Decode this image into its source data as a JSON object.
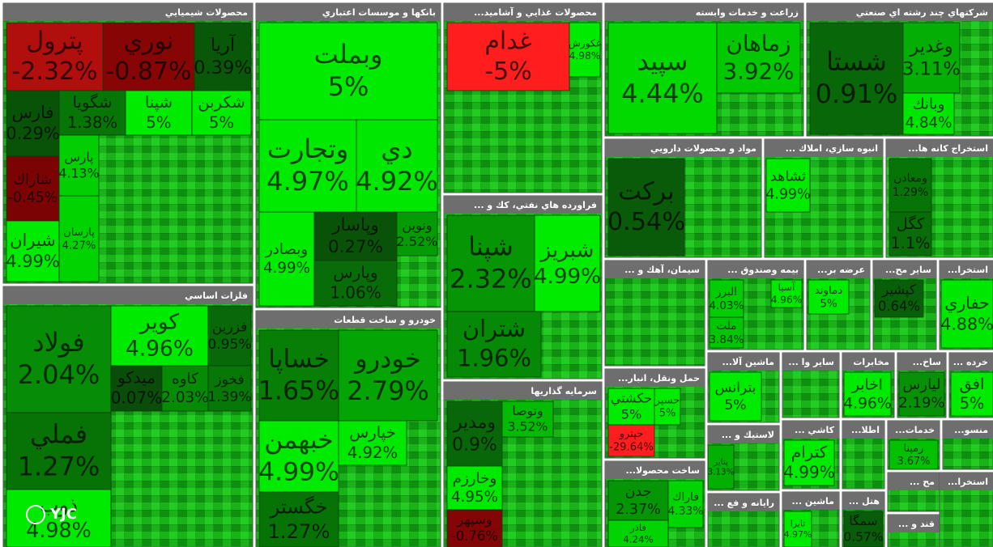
{
  "watermark": "YJC",
  "sectors": [
    {
      "title": "محصولات شيميايي",
      "tiles": [
        {
          "name": "پترول",
          "change": "-2.32%"
        },
        {
          "name": "نوري",
          "change": "-0.87%"
        },
        {
          "name": "آريا",
          "change": "0.39%"
        },
        {
          "name": "فارس",
          "change": "0.29%"
        },
        {
          "name": "شگويا",
          "change": "1.38%"
        },
        {
          "name": "شپنا",
          "change": "5%"
        },
        {
          "name": "شكربن",
          "change": "5%"
        },
        {
          "name": "شاراك",
          "change": "-0.45%"
        },
        {
          "name": "شيران",
          "change": "4.99%"
        },
        {
          "name": "پارس",
          "change": "4.13%"
        },
        {
          "name": "پارسان",
          "change": "4.27%"
        }
      ]
    },
    {
      "title": "فلزات اساسي",
      "tiles": [
        {
          "name": "فولاد",
          "change": "2.04%"
        },
        {
          "name": "كوير",
          "change": "4.96%"
        },
        {
          "name": "فزرين",
          "change": "0.95%"
        },
        {
          "name": "ميدكو",
          "change": "0.07%"
        },
        {
          "name": "كاوه",
          "change": "2.03%"
        },
        {
          "name": "فخوز",
          "change": "1.39%"
        },
        {
          "name": "فملي",
          "change": "1.27%"
        },
        {
          "name": "ذوب",
          "change": "4.98%"
        }
      ]
    },
    {
      "title": "بانكها و موسسات اعتباري",
      "tiles": [
        {
          "name": "وبملت",
          "change": "5%"
        },
        {
          "name": "وتجارت",
          "change": "4.97%"
        },
        {
          "name": "دي",
          "change": "4.92%"
        },
        {
          "name": "وبصادر",
          "change": "4.99%"
        },
        {
          "name": "وپاسار",
          "change": "0.27%"
        },
        {
          "name": "ونوين",
          "change": "2.52%"
        },
        {
          "name": "وپارس",
          "change": "1.06%"
        }
      ]
    },
    {
      "title": "خودرو و ساخت قطعات",
      "tiles": [
        {
          "name": "خساپا",
          "change": "1.65%"
        },
        {
          "name": "خودرو",
          "change": "2.79%"
        },
        {
          "name": "خبهمن",
          "change": "4.99%"
        },
        {
          "name": "خپارس",
          "change": "4.92%"
        },
        {
          "name": "خگستر",
          "change": "1.27%"
        }
      ]
    },
    {
      "title": "...محصولات غذايي و آشاميد",
      "tiles": [
        {
          "name": "غدام",
          "change": "-5%"
        },
        {
          "name": "غكورش",
          "change": "4.98%"
        }
      ]
    },
    {
      "title": "... فراورده هاي نفتي، كك و",
      "tiles": [
        {
          "name": "شپنا",
          "change": "2.32%"
        },
        {
          "name": "شبريز",
          "change": "4.99%"
        },
        {
          "name": "شتران",
          "change": "1.96%"
        }
      ]
    },
    {
      "title": "سرمايه گذاريها",
      "tiles": [
        {
          "name": "ومدير",
          "change": "0.9%"
        },
        {
          "name": "وتوصا",
          "change": "3.52%"
        },
        {
          "name": "وخارزم",
          "change": "4.95%"
        },
        {
          "name": "وسپهر",
          "change": "-0.76%"
        }
      ]
    },
    {
      "title": "زراعت و خدمات وابسته",
      "tiles": [
        {
          "name": "سپيد",
          "change": "4.44%"
        },
        {
          "name": "زماهان",
          "change": "3.92%"
        }
      ]
    },
    {
      "title": "شركتهاي چند رشته اي صنعتي",
      "tiles": [
        {
          "name": "شستا",
          "change": "0.91%"
        },
        {
          "name": "وغدير",
          "change": "3.11%"
        },
        {
          "name": "وبانك",
          "change": "4.84%"
        }
      ]
    },
    {
      "title": "مواد و محصولات دارويي",
      "tiles": [
        {
          "name": "بركت",
          "change": "0.54%"
        }
      ]
    },
    {
      "title": "... انبوه سازي، املاك",
      "tiles": [
        {
          "name": "ثشاهد",
          "change": "4.99%"
        }
      ]
    },
    {
      "title": "...استخراج كانه ها",
      "tiles": [
        {
          "name": "ومعادن",
          "change": "1.29%"
        },
        {
          "name": "كگل",
          "change": "1.1%"
        }
      ]
    },
    {
      "title": "... سيمان، آهك و",
      "tiles": []
    },
    {
      "title": "... بيمه وصندوق",
      "tiles": [
        {
          "name": "البرز",
          "change": "4.03%"
        },
        {
          "name": "ملت",
          "change": "3.84%"
        },
        {
          "name": "آسيا",
          "change": "4.96%"
        }
      ]
    },
    {
      "title": "...عرضه بر",
      "tiles": [
        {
          "name": "دماوند",
          "change": "5%"
        }
      ]
    },
    {
      "title": "...ساير مح",
      "tiles": [
        {
          "name": "كپشير",
          "change": "0.64%"
        }
      ]
    },
    {
      "title": "...استخرا",
      "tiles": [
        {
          "name": "حفاري",
          "change": "4.88%"
        }
      ]
    },
    {
      "title": "...حمل ونقل، انبار",
      "tiles": [
        {
          "name": "حكشتي",
          "change": "5%"
        },
        {
          "name": "حپترو",
          "change": "-29.64%"
        },
        {
          "name": "حسير",
          "change": "5%"
        }
      ]
    },
    {
      "title": "...ساخت محصولا",
      "tiles": [
        {
          "name": "جدن",
          "change": "2.37%"
        },
        {
          "name": "فاراك",
          "change": "4.33%"
        },
        {
          "name": "فاذر",
          "change": "4.24%"
        }
      ]
    },
    {
      "title": "...ماشين آلا",
      "tiles": [
        {
          "name": "بترانس",
          "change": "5%"
        }
      ]
    },
    {
      "title": "... ساير وا",
      "tiles": []
    },
    {
      "title": "مخابرات",
      "tiles": [
        {
          "name": "اخابر",
          "change": "4.96%"
        }
      ]
    },
    {
      "title": "...ساخ",
      "tiles": [
        {
          "name": "ليارس",
          "change": "2.19%"
        }
      ]
    },
    {
      "title": "... خرده",
      "tiles": [
        {
          "name": "افق",
          "change": "5%"
        }
      ]
    },
    {
      "title": "... لاستيك و",
      "tiles": [
        {
          "name": "پتاير",
          "change": "3.13%"
        }
      ]
    },
    {
      "title": "... كاشي",
      "tiles": [
        {
          "name": "كترام",
          "change": "4.99%"
        }
      ]
    },
    {
      "title": "...اطلا",
      "tiles": []
    },
    {
      "title": "...خدمات",
      "tiles": [
        {
          "name": "رمپنا",
          "change": "3.67%"
        }
      ]
    },
    {
      "title": "...منسو",
      "tiles": []
    },
    {
      "title": "... رايانه و فع",
      "tiles": []
    },
    {
      "title": "... ماشين",
      "tiles": [
        {
          "name": "تايرا",
          "change": "4.97%"
        }
      ]
    },
    {
      "title": "... هتل",
      "tiles": [
        {
          "name": "سمگا",
          "change": "0.57%"
        }
      ]
    },
    {
      "title": "... مح",
      "tiles": []
    },
    {
      "title": "... قند و",
      "tiles": []
    },
    {
      "title": "...استخرا",
      "tiles": []
    }
  ]
}
